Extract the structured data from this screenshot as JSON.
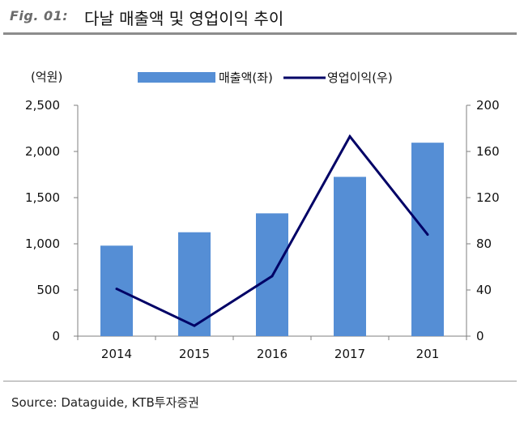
{
  "figure": {
    "label": "Fig. 01:",
    "title": "다날 매출액 및 영업이익 추이",
    "source": "Source: Dataguide, KTB투자증권"
  },
  "chart_data": {
    "type": "bar",
    "unit_label": "(억원)",
    "categories": [
      "2014",
      "2015",
      "2016",
      "2017",
      "201"
    ],
    "series": [
      {
        "name": "매출액(좌)",
        "type": "bar",
        "axis": "left",
        "color": "#558ED5",
        "values": [
          980,
          1125,
          1330,
          1725,
          2095
        ]
      },
      {
        "name": "영업이익(우)",
        "type": "line",
        "axis": "right",
        "color": "#000066",
        "values": [
          41,
          9,
          52,
          173,
          88
        ]
      }
    ],
    "ylim_left": [
      0,
      2500
    ],
    "yticks_left": [
      "0",
      "500",
      "1,000",
      "1,500",
      "2,000",
      "2,500"
    ],
    "ylim_right": [
      0,
      200
    ],
    "yticks_right": [
      "0",
      "40",
      "80",
      "120",
      "160",
      "200"
    ],
    "legend_position": "top-center",
    "grid": false
  }
}
